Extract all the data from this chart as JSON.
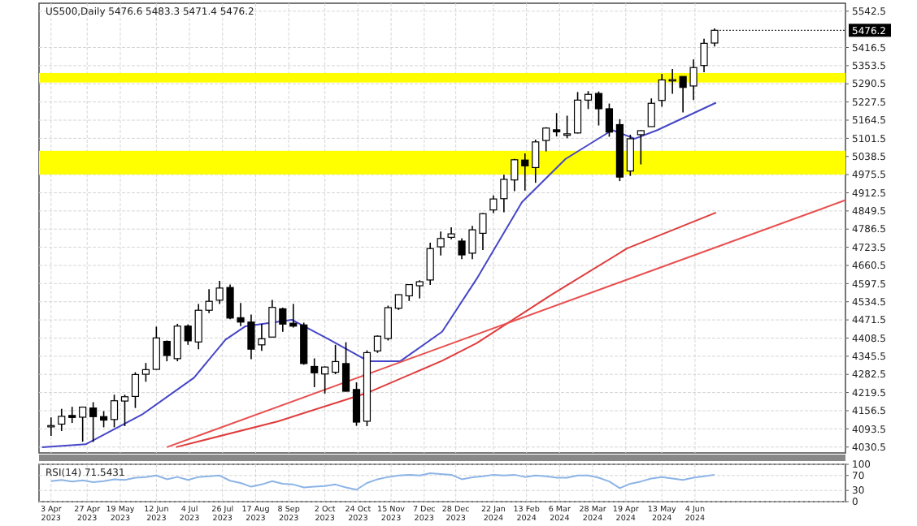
{
  "chart_data": [
    {
      "type": "candlestick",
      "title": "US500,Daily 5476.6 5483.3 5471.4 5476.2",
      "color": "#000000",
      "x": [
        "2023-04-03",
        "2023-04-10",
        "2023-04-17",
        "2023-04-24",
        "2023-05-01",
        "2023-05-08",
        "2023-05-15",
        "2023-05-22",
        "2023-05-29",
        "2023-06-05",
        "2023-06-12",
        "2023-06-19",
        "2023-06-26",
        "2023-07-03",
        "2023-07-10",
        "2023-07-17",
        "2023-07-24",
        "2023-07-31",
        "2023-08-07",
        "2023-08-14",
        "2023-08-21",
        "2023-08-28",
        "2023-09-04",
        "2023-09-11",
        "2023-09-18",
        "2023-09-25",
        "2023-10-02",
        "2023-10-09",
        "2023-10-16",
        "2023-10-23",
        "2023-10-30",
        "2023-11-06",
        "2023-11-13",
        "2023-11-20",
        "2023-11-27",
        "2023-12-04",
        "2023-12-11",
        "2023-12-18",
        "2023-12-25",
        "2024-01-01",
        "2024-01-08",
        "2024-01-15",
        "2024-01-22",
        "2024-01-29",
        "2024-02-05",
        "2024-02-12",
        "2024-02-19",
        "2024-02-26",
        "2024-03-04",
        "2024-03-11",
        "2024-03-18",
        "2024-03-25",
        "2024-04-01",
        "2024-04-08",
        "2024-04-15",
        "2024-04-22",
        "2024-04-29",
        "2024-05-06",
        "2024-05-13",
        "2024-05-20",
        "2024-05-27",
        "2024-06-03",
        "2024-06-10",
        "2024-06-17"
      ],
      "ohlc": [
        [
          4102,
          4133,
          4069,
          4105
        ],
        [
          4110,
          4163,
          4086,
          4137
        ],
        [
          4140,
          4170,
          4114,
          4133
        ],
        [
          4134,
          4170,
          4049,
          4169
        ],
        [
          4166,
          4186,
          4048,
          4136
        ],
        [
          4136,
          4155,
          4099,
          4124
        ],
        [
          4126,
          4212,
          4099,
          4191
        ],
        [
          4190,
          4212,
          4103,
          4205
        ],
        [
          4206,
          4290,
          4166,
          4282
        ],
        [
          4283,
          4322,
          4257,
          4299
        ],
        [
          4300,
          4448,
          4298,
          4409
        ],
        [
          4397,
          4400,
          4328,
          4348
        ],
        [
          4337,
          4458,
          4328,
          4450
        ],
        [
          4450,
          4456,
          4385,
          4399
        ],
        [
          4395,
          4527,
          4370,
          4505
        ],
        [
          4505,
          4578,
          4495,
          4536
        ],
        [
          4540,
          4607,
          4527,
          4582
        ],
        [
          4584,
          4594,
          4474,
          4478
        ],
        [
          4479,
          4530,
          4450,
          4464
        ],
        [
          4464,
          4490,
          4335,
          4370
        ],
        [
          4385,
          4458,
          4364,
          4406
        ],
        [
          4412,
          4541,
          4411,
          4515
        ],
        [
          4510,
          4514,
          4430,
          4457
        ],
        [
          4460,
          4527,
          4445,
          4450
        ],
        [
          4454,
          4462,
          4316,
          4320
        ],
        [
          4310,
          4338,
          4238,
          4288
        ],
        [
          4284,
          4310,
          4216,
          4308
        ],
        [
          4290,
          4385,
          4283,
          4327
        ],
        [
          4320,
          4394,
          4223,
          4224
        ],
        [
          4230,
          4255,
          4104,
          4117
        ],
        [
          4120,
          4366,
          4103,
          4358
        ],
        [
          4364,
          4418,
          4357,
          4415
        ],
        [
          4407,
          4521,
          4400,
          4514
        ],
        [
          4512,
          4560,
          4506,
          4559
        ],
        [
          4555,
          4595,
          4537,
          4594
        ],
        [
          4590,
          4609,
          4546,
          4604
        ],
        [
          4610,
          4739,
          4593,
          4719
        ],
        [
          4725,
          4778,
          4695,
          4754
        ],
        [
          4758,
          4793,
          4751,
          4770
        ],
        [
          4745,
          4755,
          4682,
          4697
        ],
        [
          4703,
          4798,
          4682,
          4784
        ],
        [
          4772,
          4842,
          4714,
          4840
        ],
        [
          4853,
          4903,
          4842,
          4891
        ],
        [
          4892,
          4975,
          4845,
          4959
        ],
        [
          4957,
          5030,
          4918,
          5027
        ],
        [
          5026,
          5049,
          4920,
          5006
        ],
        [
          5000,
          5097,
          4947,
          5089
        ],
        [
          5094,
          5140,
          5056,
          5137
        ],
        [
          5131,
          5189,
          5108,
          5124
        ],
        [
          5112,
          5180,
          5102,
          5117
        ],
        [
          5120,
          5262,
          5118,
          5234
        ],
        [
          5234,
          5265,
          5203,
          5254
        ],
        [
          5257,
          5264,
          5146,
          5204
        ],
        [
          5204,
          5222,
          5107,
          5123
        ],
        [
          5149,
          5168,
          4953,
          4967
        ],
        [
          4988,
          5114,
          4971,
          5100
        ],
        [
          5114,
          5130,
          5011,
          5128
        ],
        [
          5142,
          5240,
          5142,
          5223
        ],
        [
          5233,
          5325,
          5211,
          5304
        ],
        [
          5305,
          5342,
          5256,
          5305
        ],
        [
          5316,
          5316,
          5191,
          5278
        ],
        [
          5283,
          5375,
          5234,
          5347
        ],
        [
          5354,
          5447,
          5331,
          5431
        ],
        [
          5432,
          5483,
          5420,
          5476.2
        ]
      ],
      "series": [
        {
          "type": "line",
          "color": "#4646c8",
          "x": [
            "2023-03-28",
            "2023-04-26",
            "2023-06-03",
            "2023-07-07",
            "2023-07-28",
            "2023-08-10",
            "2023-09-10",
            "2023-10-05",
            "2023-10-31",
            "2023-11-21",
            "2023-12-19",
            "2024-01-11",
            "2024-02-10",
            "2024-03-10",
            "2024-04-10",
            "2024-04-25",
            "2024-05-10",
            "2024-06-18"
          ],
          "values": [
            4030,
            4040,
            4145,
            4271,
            4403,
            4449,
            4472,
            4403,
            4328,
            4328,
            4431,
            4615,
            4880,
            5030,
            5130,
            5100,
            5130,
            5225
          ]
        },
        {
          "type": "line",
          "color": "#e03c3c",
          "x": [
            "2023-06-25",
            "2023-09-01",
            "2023-10-31",
            "2023-12-19",
            "2024-01-11",
            "2024-03-01",
            "2024-04-20",
            "2024-06-18"
          ],
          "values": [
            4030,
            4120,
            4220,
            4330,
            4391,
            4560,
            4720,
            4844
          ]
        },
        {
          "type": "line",
          "color": "#e85050",
          "x": [
            "2023-06-19",
            "2024-09-12"
          ],
          "values": [
            4030,
            4887
          ]
        }
      ],
      "xlim": [
        "2023-03-26",
        "2024-09-12"
      ],
      "ylim": [
        4010,
        5570
      ],
      "yticks": [
        4030.5,
        4093.5,
        4156.5,
        4219.5,
        4282.5,
        4345.5,
        4408.5,
        4471.5,
        4534.5,
        4597.5,
        4660.5,
        4723.5,
        4786.5,
        4849.5,
        4912.5,
        4975.5,
        5038.5,
        5101.5,
        5164.5,
        5227.5,
        5290.5,
        5353.5,
        5416.5,
        5542.5
      ],
      "xticks": [
        {
          "value": "2023-04-03",
          "label": null
        },
        {
          "value": "2023-04-27",
          "label": null
        },
        {
          "value": "2023-05-19",
          "label": null
        },
        {
          "value": "2023-06-12",
          "label": null
        },
        {
          "value": "2023-07-04",
          "label": null
        },
        {
          "value": "2023-07-26",
          "label": null
        },
        {
          "value": "2023-08-17",
          "label": null
        },
        {
          "value": "2023-09-08",
          "label": null
        },
        {
          "value": "2023-10-02",
          "label": null
        },
        {
          "value": "2023-10-24",
          "label": null
        },
        {
          "value": "2023-11-15",
          "label": null
        },
        {
          "value": "2023-12-07",
          "label": null
        },
        {
          "value": "2023-12-28",
          "label": null
        },
        {
          "value": "2024-01-22",
          "label": null
        },
        {
          "value": "2024-02-13",
          "label": null
        },
        {
          "value": "2024-03-06",
          "label": null
        },
        {
          "value": "2024-03-28",
          "label": null
        },
        {
          "value": "2024-04-19",
          "label": null
        },
        {
          "value": "2024-05-13",
          "label": null
        },
        {
          "value": "2024-06-04",
          "label": null
        }
      ],
      "tick_labels": "y",
      "grid": true,
      "bands": [
        {
          "axis": "y",
          "from": 5295,
          "to": 5328,
          "color": "#ffff00"
        },
        {
          "axis": "y",
          "from": 4976,
          "to": 5058,
          "color": "#ffff00"
        }
      ],
      "annotations": [
        {
          "text": "5476.2",
          "x": "2024-06-17",
          "y": 5476.2
        }
      ]
    },
    {
      "type": "line",
      "title": "RSI(14) 71.5431",
      "x": [
        "2023-04-03",
        "2023-04-10",
        "2023-04-17",
        "2023-04-24",
        "2023-05-01",
        "2023-05-08",
        "2023-05-15",
        "2023-05-22",
        "2023-05-29",
        "2023-06-05",
        "2023-06-12",
        "2023-06-19",
        "2023-06-26",
        "2023-07-03",
        "2023-07-10",
        "2023-07-17",
        "2023-07-24",
        "2023-07-31",
        "2023-08-07",
        "2023-08-14",
        "2023-08-21",
        "2023-08-28",
        "2023-09-04",
        "2023-09-11",
        "2023-09-18",
        "2023-09-25",
        "2023-10-02",
        "2023-10-09",
        "2023-10-16",
        "2023-10-23",
        "2023-10-30",
        "2023-11-06",
        "2023-11-13",
        "2023-11-20",
        "2023-11-27",
        "2023-12-04",
        "2023-12-11",
        "2023-12-18",
        "2023-12-25",
        "2024-01-01",
        "2024-01-08",
        "2024-01-15",
        "2024-01-22",
        "2024-01-29",
        "2024-02-05",
        "2024-02-12",
        "2024-02-19",
        "2024-02-26",
        "2024-03-04",
        "2024-03-11",
        "2024-03-18",
        "2024-03-25",
        "2024-04-01",
        "2024-04-08",
        "2024-04-15",
        "2024-04-22",
        "2024-04-29",
        "2024-05-06",
        "2024-05-13",
        "2024-05-20",
        "2024-05-27",
        "2024-06-03",
        "2024-06-10",
        "2024-06-17"
      ],
      "series": [
        {
          "color": "#8cb4e6",
          "values": [
            55,
            58,
            54,
            57,
            52,
            55,
            60,
            58,
            64,
            66,
            70,
            60,
            66,
            58,
            66,
            68,
            70,
            56,
            50,
            40,
            46,
            55,
            48,
            46,
            38,
            40,
            42,
            46,
            38,
            32,
            50,
            60,
            66,
            70,
            72,
            70,
            76,
            74,
            72,
            60,
            65,
            68,
            72,
            70,
            72,
            66,
            70,
            68,
            64,
            64,
            70,
            70,
            64,
            54,
            36,
            48,
            54,
            62,
            66,
            62,
            58,
            64,
            68,
            72
          ]
        }
      ],
      "xlim": [
        "2023-03-26",
        "2024-09-12"
      ],
      "ylim": [
        0,
        100
      ],
      "yticks": [
        0,
        30,
        70,
        100
      ],
      "xticks": [
        {
          "value": "2023-04-03",
          "label": "3 Apr 2023"
        },
        {
          "value": "2023-04-27",
          "label": "27 Apr 2023"
        },
        {
          "value": "2023-05-19",
          "label": "19 May 2023"
        },
        {
          "value": "2023-06-12",
          "label": "12 Jun 2023"
        },
        {
          "value": "2023-07-04",
          "label": "4 Jul 2023"
        },
        {
          "value": "2023-07-26",
          "label": "26 Jul 2023"
        },
        {
          "value": "2023-08-17",
          "label": "17 Aug 2023"
        },
        {
          "value": "2023-09-08",
          "label": "8 Sep 2023"
        },
        {
          "value": "2023-10-02",
          "label": "2 Oct 2023"
        },
        {
          "value": "2023-10-24",
          "label": "24 Oct 2023"
        },
        {
          "value": "2023-11-15",
          "label": "15 Nov 2023"
        },
        {
          "value": "2023-12-07",
          "label": "7 Dec 2023"
        },
        {
          "value": "2023-12-28",
          "label": "28 Dec 2023"
        },
        {
          "value": "2024-01-22",
          "label": "22 Jan 2024"
        },
        {
          "value": "2024-02-13",
          "label": "13 Feb 2024"
        },
        {
          "value": "2024-03-06",
          "label": "6 Mar 2024"
        },
        {
          "value": "2024-03-28",
          "label": "28 Mar 2024"
        },
        {
          "value": "2024-04-19",
          "label": "19 Apr 2024"
        },
        {
          "value": "2024-05-13",
          "label": "13 May 2024"
        },
        {
          "value": "2024-06-04",
          "label": "4 Jun 2024"
        }
      ],
      "grid": true
    }
  ]
}
